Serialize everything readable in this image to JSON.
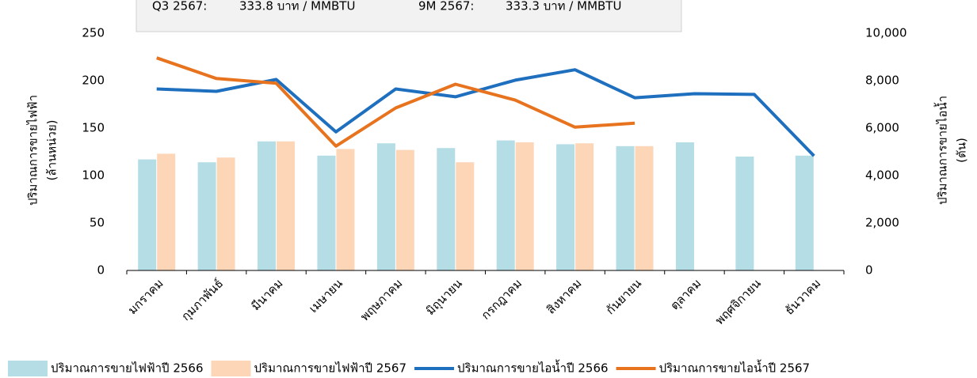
{
  "chart_data": {
    "type": "bar-line",
    "annotations": [
      "Q3 2567:",
      "333.8 บาท / MMBTU",
      "9M 2567:",
      "333.3 บาท / MMBTU"
    ],
    "ylabel": [
      "ปริมาณการขายไฟฟ้า",
      "(ล้านหน่วย)"
    ],
    "y2label": [
      "ปริมาณการขายไอน้ำ",
      "(ตัน)"
    ],
    "categories": [
      "มกราคม",
      "กุมภาพันธ์",
      "มีนาคม",
      "เมษายน",
      "พฤษภาคม",
      "มิถุนายน",
      "กรกฎาคม",
      "สิงหาคม",
      "กันยายน",
      "ตุลาคม",
      "พฤศจิกายน",
      "ธันวาคม"
    ],
    "series": [
      {
        "name": "ปริมาณการขายไฟฟ้าปี 2566",
        "color": "#b4dde6",
        "kind": "bar",
        "values": [
          117,
          114,
          136,
          121,
          134,
          129,
          137,
          133,
          131,
          135,
          120,
          121
        ]
      },
      {
        "name": "ปริมาณการขายไฟฟ้าปี 2567",
        "color": "#fdd6b8",
        "kind": "bar",
        "values": [
          123,
          119,
          136,
          128,
          127,
          114,
          135,
          134,
          131,
          null,
          null,
          null
        ]
      },
      {
        "name": "ปริมาณการขายไอน้ำปี 2566",
        "color": "#1f6fbf",
        "kind": "line",
        "axis": "y2",
        "values": [
          7650,
          7550,
          8050,
          5840,
          7650,
          7320,
          8020,
          8460,
          7280,
          7450,
          7420,
          4830
        ]
      },
      {
        "name": "ปริมาณการขายไอน้ำปี 2567",
        "color": "#e8731e",
        "kind": "line",
        "axis": "y2",
        "values": [
          8960,
          8090,
          7890,
          5240,
          6850,
          7850,
          7180,
          6040,
          6210,
          null,
          null,
          null
        ]
      }
    ],
    "ylim": [
      0,
      250
    ],
    "yticks": [
      0,
      50,
      100,
      150,
      200,
      250
    ],
    "y2lim": [
      0,
      10000
    ],
    "y2ticks": [
      0,
      {
        "value": 2000,
        "label": "2,000"
      },
      {
        "value": 4000,
        "label": "4,000"
      },
      {
        "value": 6000,
        "label": "6,000"
      },
      {
        "value": 8000,
        "label": "8,000"
      },
      {
        "value": 10000,
        "label": "10,000"
      }
    ],
    "legend": "bottom"
  }
}
